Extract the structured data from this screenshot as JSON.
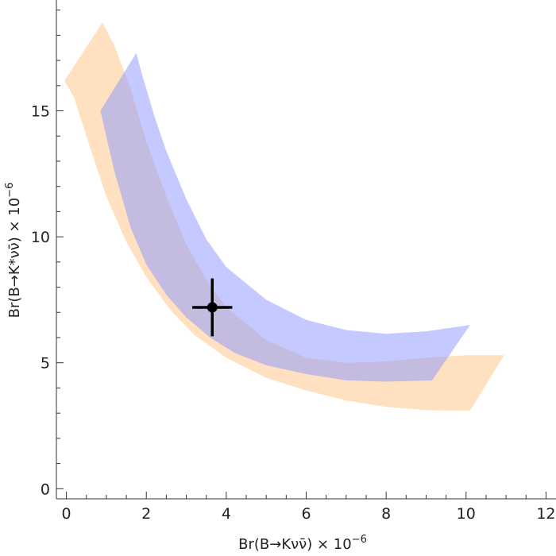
{
  "chart_data": {
    "type": "area",
    "xlabel": {
      "text": "Br(B→Kνν̄) × 10",
      "exponent": "−6"
    },
    "ylabel": {
      "text": "Br(B→K*νν̄) × 10",
      "exponent": "−6"
    },
    "xlim": [
      -0.25,
      12.25
    ],
    "ylim": [
      -0.4,
      19.4
    ],
    "x_ticks_major": [
      {
        "value": 0,
        "label": "0"
      },
      {
        "value": 2,
        "label": "2"
      },
      {
        "value": 4,
        "label": "4"
      },
      {
        "value": 6,
        "label": "6"
      },
      {
        "value": 8,
        "label": "8"
      },
      {
        "value": 10,
        "label": "10"
      },
      {
        "value": 12,
        "label": "12"
      }
    ],
    "y_ticks_major": [
      {
        "value": 0,
        "label": "0"
      },
      {
        "value": 5,
        "label": "5"
      },
      {
        "value": 10,
        "label": "10"
      },
      {
        "value": 15,
        "label": "15"
      }
    ],
    "grid": false,
    "series": [
      {
        "color": "#ffc890",
        "opacity": 0.55,
        "outer": [
          [
            -0.05,
            16.2
          ],
          [
            0.2,
            15.5
          ],
          [
            0.5,
            14.0
          ],
          [
            1.0,
            11.6
          ],
          [
            1.5,
            9.8
          ],
          [
            2.0,
            8.4
          ],
          [
            2.6,
            7.1
          ],
          [
            3.2,
            6.1
          ],
          [
            4.0,
            5.2
          ],
          [
            5.0,
            4.4
          ],
          [
            6.0,
            3.9
          ],
          [
            7.0,
            3.5
          ],
          [
            8.0,
            3.25
          ],
          [
            9.0,
            3.12
          ],
          [
            10.1,
            3.1
          ]
        ],
        "inner": [
          [
            10.95,
            5.3
          ],
          [
            10.0,
            5.3
          ],
          [
            9.0,
            5.2
          ],
          [
            8.0,
            5.05
          ],
          [
            7.0,
            5.0
          ],
          [
            6.0,
            5.2
          ],
          [
            5.0,
            5.9
          ],
          [
            4.0,
            7.2
          ],
          [
            3.5,
            8.3
          ],
          [
            3.0,
            9.7
          ],
          [
            2.5,
            11.6
          ],
          [
            2.0,
            13.8
          ],
          [
            1.6,
            15.9
          ],
          [
            1.2,
            17.6
          ],
          [
            0.9,
            18.5
          ]
        ]
      },
      {
        "color": "#8a96ff",
        "opacity": 0.5,
        "outer": [
          [
            0.85,
            15.0
          ],
          [
            1.2,
            12.6
          ],
          [
            1.6,
            10.4
          ],
          [
            2.0,
            8.9
          ],
          [
            2.5,
            7.7
          ],
          [
            3.0,
            6.8
          ],
          [
            3.6,
            6.0
          ],
          [
            4.2,
            5.4
          ],
          [
            5.0,
            4.9
          ],
          [
            6.0,
            4.55
          ],
          [
            7.0,
            4.3
          ],
          [
            8.0,
            4.25
          ],
          [
            9.15,
            4.3
          ]
        ],
        "inner": [
          [
            10.1,
            6.5
          ],
          [
            9.0,
            6.25
          ],
          [
            8.0,
            6.15
          ],
          [
            7.0,
            6.3
          ],
          [
            6.0,
            6.7
          ],
          [
            5.0,
            7.5
          ],
          [
            4.0,
            8.8
          ],
          [
            3.5,
            9.9
          ],
          [
            3.0,
            11.5
          ],
          [
            2.5,
            13.4
          ],
          [
            2.2,
            14.8
          ],
          [
            1.9,
            16.4
          ],
          [
            1.75,
            17.3
          ]
        ]
      }
    ],
    "marker": {
      "x": 3.65,
      "y": 7.2,
      "x_err": 0.5,
      "y_err": 1.15,
      "color": "#000000"
    }
  }
}
